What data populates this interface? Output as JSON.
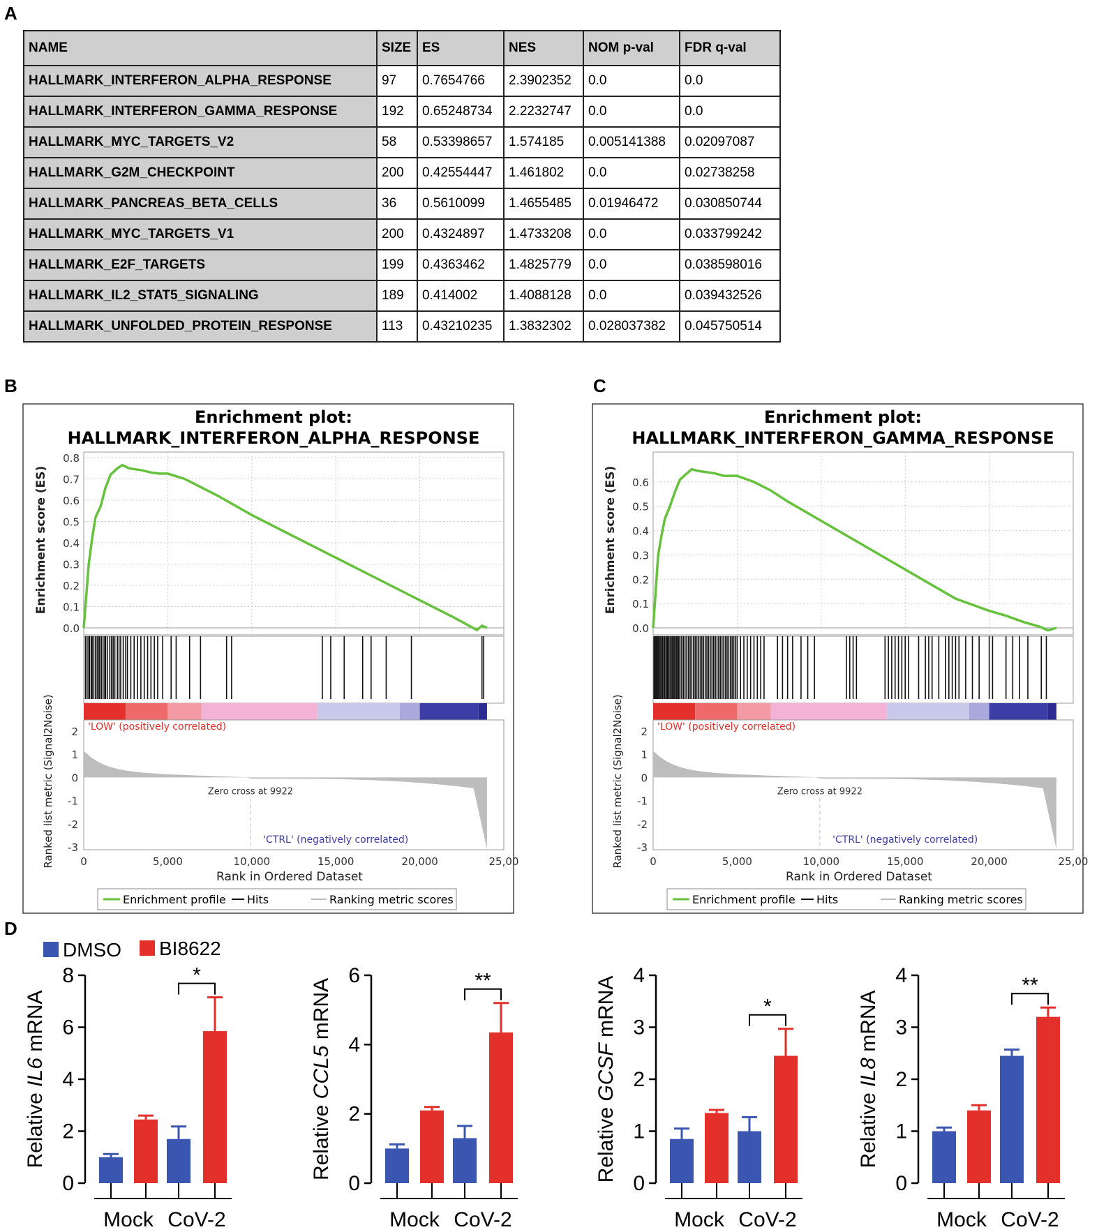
{
  "panel_labels": {
    "a": "A",
    "b": "B",
    "c": "C",
    "d": "D"
  },
  "table": {
    "headers": [
      "NAME",
      "SIZE",
      "ES",
      "NES",
      "NOM p-val",
      "FDR q-val"
    ],
    "rows": [
      [
        "HALLMARK_INTERFERON_ALPHA_RESPONSE",
        "97",
        "0.7654766",
        "2.3902352",
        "0.0",
        "0.0"
      ],
      [
        "HALLMARK_INTERFERON_GAMMA_RESPONSE",
        "192",
        "0.65248734",
        "2.2232747",
        "0.0",
        "0.0"
      ],
      [
        "HALLMARK_MYC_TARGETS_V2",
        "58",
        "0.53398657",
        "1.574185",
        "0.005141388",
        "0.02097087"
      ],
      [
        "HALLMARK_G2M_CHECKPOINT",
        "200",
        "0.42554447",
        "1.461802",
        "0.0",
        "0.02738258"
      ],
      [
        "HALLMARK_PANCREAS_BETA_CELLS",
        "36",
        "0.5610099",
        "1.4655485",
        "0.01946472",
        "0.030850744"
      ],
      [
        "HALLMARK_MYC_TARGETS_V1",
        "200",
        "0.4324897",
        "1.4733208",
        "0.0",
        "0.033799242"
      ],
      [
        "HALLMARK_E2F_TARGETS",
        "199",
        "0.4363462",
        "1.4825779",
        "0.0",
        "0.038598016"
      ],
      [
        "HALLMARK_IL2_STAT5_SIGNALING",
        "189",
        "0.414002",
        "1.4088128",
        "0.0",
        "0.039432526"
      ],
      [
        "HALLMARK_UNFOLDED_PROTEIN_RESPONSE",
        "113",
        "0.43210235",
        "1.3832302",
        "0.028037382",
        "0.045750514"
      ]
    ]
  },
  "colors": {
    "green": "#66c23c",
    "blue": "#3a56b0",
    "red": "#e3302a",
    "pink": "#f3b2d6",
    "lavender": "#c9c9ec",
    "navy": "#3d3da8",
    "grey": "#bdbdbd"
  },
  "chart_data": [
    {
      "type": "line",
      "panel": "B",
      "title_line1": "Enrichment plot:",
      "title_line2": "HALLMARK_INTERFERON_ALPHA_RESPONSE",
      "ylabel_top": "Enrichment score (ES)",
      "ylabel_bottom": "Ranked list metric (Signal2Noise)",
      "xlabel": "Rank in Ordered Dataset",
      "es_ylim": [
        0,
        0.8
      ],
      "es_yticks": [
        "0.8",
        "0.7",
        "0.6",
        "0.5",
        "0.4",
        "0.3",
        "0.2",
        "0.1",
        "0.0"
      ],
      "metric_yticks": [
        "2",
        "1",
        "0",
        "-1",
        "-2",
        "-3"
      ],
      "xticks": [
        "0",
        "5,000",
        "10,000",
        "15,000",
        "20,000",
        "25,00"
      ],
      "xlim": [
        0,
        25000
      ],
      "es_curve": [
        [
          0,
          0
        ],
        [
          150,
          0.15
        ],
        [
          300,
          0.3
        ],
        [
          500,
          0.42
        ],
        [
          700,
          0.52
        ],
        [
          1000,
          0.57
        ],
        [
          1300,
          0.66
        ],
        [
          1600,
          0.72
        ],
        [
          2000,
          0.75
        ],
        [
          2300,
          0.765
        ],
        [
          2700,
          0.75
        ],
        [
          3100,
          0.745
        ],
        [
          3500,
          0.74
        ],
        [
          4000,
          0.73
        ],
        [
          4500,
          0.725
        ],
        [
          5000,
          0.725
        ],
        [
          6000,
          0.7
        ],
        [
          7000,
          0.66
        ],
        [
          8000,
          0.62
        ],
        [
          10000,
          0.53
        ],
        [
          12000,
          0.45
        ],
        [
          14000,
          0.37
        ],
        [
          16000,
          0.29
        ],
        [
          18000,
          0.21
        ],
        [
          20000,
          0.13
        ],
        [
          22000,
          0.05
        ],
        [
          23400,
          -0.01
        ],
        [
          23700,
          0.01
        ],
        [
          24000,
          0.0
        ]
      ],
      "hits": [
        100,
        200,
        300,
        350,
        450,
        500,
        600,
        700,
        800,
        900,
        950,
        1050,
        1150,
        1250,
        1300,
        1400,
        1550,
        1650,
        1750,
        1850,
        2000,
        2100,
        2200,
        2350,
        2500,
        2600,
        2800,
        3000,
        3200,
        3400,
        3600,
        3800,
        4000,
        4200,
        4400,
        4700,
        5200,
        5500,
        6300,
        6950,
        8500,
        8800,
        14200,
        14700,
        15500,
        16600,
        17100,
        18000,
        19500,
        23700,
        23800
      ],
      "legend": {
        "profile": "Enrichment profile",
        "hits": "Hits",
        "metric": "Ranking metric scores"
      },
      "annotations": {
        "low": "'LOW' (positively correlated)",
        "ctrl": "'CTRL' (negatively correlated)",
        "zero_cross": "Zero cross at 9922"
      },
      "zero_cross": 9922
    },
    {
      "type": "line",
      "panel": "C",
      "title_line1": "Enrichment plot:",
      "title_line2": "HALLMARK_INTERFERON_GAMMA_RESPONSE",
      "ylabel_top": "Enrichment score (ES)",
      "ylabel_bottom": "Ranked list metric (Signal2Noise)",
      "xlabel": "Rank in Ordered Dataset",
      "es_ylim": [
        0,
        0.7
      ],
      "es_yticks": [
        "0.6",
        "0.5",
        "0.4",
        "0.3",
        "0.2",
        "0.1",
        "0.0"
      ],
      "metric_yticks": [
        "2",
        "1",
        "0",
        "-1",
        "-2",
        "-3"
      ],
      "xticks": [
        "0",
        "5,000",
        "10,000",
        "15,000",
        "20,000",
        "25,00"
      ],
      "xlim": [
        0,
        25000
      ],
      "es_curve": [
        [
          0,
          0
        ],
        [
          150,
          0.15
        ],
        [
          300,
          0.3
        ],
        [
          500,
          0.38
        ],
        [
          700,
          0.45
        ],
        [
          1000,
          0.5
        ],
        [
          1300,
          0.56
        ],
        [
          1600,
          0.61
        ],
        [
          2000,
          0.635
        ],
        [
          2300,
          0.652
        ],
        [
          2700,
          0.645
        ],
        [
          3200,
          0.64
        ],
        [
          3700,
          0.635
        ],
        [
          4200,
          0.625
        ],
        [
          5000,
          0.625
        ],
        [
          6000,
          0.6
        ],
        [
          7000,
          0.565
        ],
        [
          8000,
          0.52
        ],
        [
          10000,
          0.44
        ],
        [
          12000,
          0.36
        ],
        [
          14000,
          0.28
        ],
        [
          16000,
          0.2
        ],
        [
          18000,
          0.12
        ],
        [
          20000,
          0.07
        ],
        [
          21000,
          0.05
        ],
        [
          22000,
          0.025
        ],
        [
          23000,
          0.005
        ],
        [
          23500,
          -0.01
        ],
        [
          24000,
          0.0
        ]
      ],
      "hits": [
        50,
        120,
        180,
        250,
        300,
        380,
        420,
        500,
        560,
        640,
        700,
        780,
        850,
        920,
        1000,
        1080,
        1150,
        1230,
        1300,
        1380,
        1450,
        1520,
        1600,
        1700,
        1800,
        1900,
        2000,
        2100,
        2200,
        2300,
        2400,
        2500,
        2600,
        2700,
        2800,
        2900,
        3000,
        3100,
        3200,
        3300,
        3400,
        3500,
        3600,
        3700,
        3800,
        3900,
        4000,
        4100,
        4200,
        4300,
        4400,
        4500,
        4600,
        4700,
        4800,
        4900,
        5000,
        5200,
        5400,
        5600,
        5800,
        6000,
        6200,
        6400,
        6600,
        7400,
        7700,
        8000,
        8300,
        8800,
        9200,
        9600,
        11500,
        11700,
        11900,
        12100,
        13800,
        14000,
        14200,
        14400,
        14600,
        14800,
        15000,
        15200,
        15800,
        16200,
        16400,
        16600,
        17000,
        17400,
        17600,
        17800,
        18000,
        18200,
        18600,
        19000,
        19400,
        20000,
        20200,
        21000,
        21400,
        21800,
        22300,
        23100,
        23400
      ],
      "legend": {
        "profile": "Enrichment profile",
        "hits": "Hits",
        "metric": "Ranking metric scores"
      },
      "annotations": {
        "low": "'LOW' (positively correlated)",
        "ctrl": "'CTRL' (negatively correlated)",
        "zero_cross": "Zero cross at 9922"
      },
      "zero_cross": 9922
    },
    {
      "type": "bar",
      "panel": "D1",
      "ylabel_prefix": "Relative ",
      "ylabel_gene": "IL6",
      "ylabel_suffix": " mRNA",
      "ylim": [
        0,
        8
      ],
      "yticks": [
        "0",
        "2",
        "4",
        "6",
        "8"
      ],
      "groups": [
        "Mock",
        "CoV-2"
      ],
      "series": [
        {
          "name": "DMSO",
          "values": [
            1.0,
            1.7
          ],
          "errors": [
            0.12,
            0.48
          ]
        },
        {
          "name": "BI8622",
          "values": [
            2.45,
            5.85
          ],
          "errors": [
            0.15,
            1.3
          ]
        }
      ],
      "significance": "*"
    },
    {
      "type": "bar",
      "panel": "D2",
      "ylabel_prefix": "Relative ",
      "ylabel_gene": "CCL5",
      "ylabel_suffix": " mRNA",
      "ylim": [
        0,
        6
      ],
      "yticks": [
        "0",
        "2",
        "4",
        "6"
      ],
      "groups": [
        "Mock",
        "CoV-2"
      ],
      "series": [
        {
          "name": "DMSO",
          "values": [
            1.0,
            1.3
          ],
          "errors": [
            0.12,
            0.35
          ]
        },
        {
          "name": "BI8622",
          "values": [
            2.1,
            4.35
          ],
          "errors": [
            0.1,
            0.85
          ]
        }
      ],
      "significance": "**"
    },
    {
      "type": "bar",
      "panel": "D3",
      "ylabel_prefix": "Relative ",
      "ylabel_gene": "GCSF",
      "ylabel_suffix": " mRNA",
      "ylim": [
        0,
        4
      ],
      "yticks": [
        "0",
        "1",
        "2",
        "3",
        "4"
      ],
      "groups": [
        "Mock",
        "CoV-2"
      ],
      "series": [
        {
          "name": "DMSO",
          "values": [
            0.85,
            1.0
          ],
          "errors": [
            0.2,
            0.27
          ]
        },
        {
          "name": "BI8622",
          "values": [
            1.35,
            2.45
          ],
          "errors": [
            0.06,
            0.52
          ]
        }
      ],
      "significance": "*"
    },
    {
      "type": "bar",
      "panel": "D4",
      "ylabel_prefix": "Relative ",
      "ylabel_gene": "IL8",
      "ylabel_suffix": " mRNA",
      "ylim": [
        0,
        4
      ],
      "yticks": [
        "0",
        "1",
        "2",
        "3",
        "4"
      ],
      "groups": [
        "Mock",
        "CoV-2"
      ],
      "series": [
        {
          "name": "DMSO",
          "values": [
            1.0,
            2.45
          ],
          "errors": [
            0.07,
            0.12
          ]
        },
        {
          "name": "BI8622",
          "values": [
            1.4,
            3.2
          ],
          "errors": [
            0.1,
            0.18
          ]
        }
      ],
      "significance": "**"
    }
  ],
  "bar_legend": {
    "dmso": "DMSO",
    "bi8622": "BI8622"
  }
}
